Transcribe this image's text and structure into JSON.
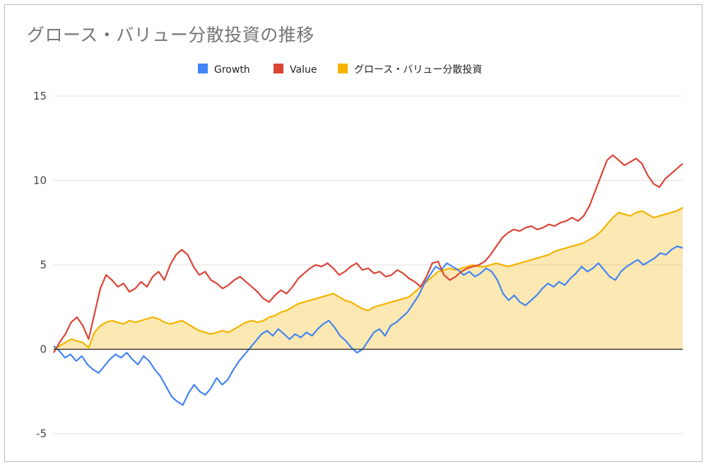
{
  "chart_data": {
    "type": "line",
    "title": "グロース・バリュー分散投資の推移",
    "xlabel": "",
    "ylabel": "",
    "ylim": [
      -5,
      15
    ],
    "yticks": [
      -5,
      0,
      5,
      10,
      15
    ],
    "grid": true,
    "legend_position": "top",
    "series": [
      {
        "name": "Growth",
        "color": "#4285f4",
        "style": "line",
        "values": [
          0.2,
          -0.1,
          -0.5,
          -0.3,
          -0.7,
          -0.4,
          -0.9,
          -1.2,
          -1.4,
          -1.0,
          -0.6,
          -0.3,
          -0.5,
          -0.2,
          -0.6,
          -0.9,
          -0.4,
          -0.7,
          -1.2,
          -1.6,
          -2.2,
          -2.8,
          -3.1,
          -3.3,
          -2.6,
          -2.1,
          -2.5,
          -2.7,
          -2.3,
          -1.7,
          -2.1,
          -1.8,
          -1.2,
          -0.7,
          -0.3,
          0.1,
          0.5,
          0.9,
          1.1,
          0.8,
          1.2,
          0.9,
          0.6,
          0.9,
          0.7,
          1.0,
          0.8,
          1.2,
          1.5,
          1.7,
          1.3,
          0.8,
          0.5,
          0.1,
          -0.2,
          0.0,
          0.5,
          1.0,
          1.2,
          0.8,
          1.4,
          1.6,
          1.9,
          2.2,
          2.7,
          3.2,
          3.9,
          4.4,
          4.9,
          4.7,
          5.1,
          4.9,
          4.7,
          4.4,
          4.6,
          4.3,
          4.5,
          4.8,
          4.6,
          4.1,
          3.3,
          2.9,
          3.2,
          2.8,
          2.6,
          2.9,
          3.2,
          3.6,
          3.9,
          3.7,
          4.0,
          3.8,
          4.2,
          4.5,
          4.9,
          4.6,
          4.8,
          5.1,
          4.7,
          4.3,
          4.1,
          4.6,
          4.9,
          5.1,
          5.3,
          5.0,
          5.2,
          5.4,
          5.7,
          5.6,
          5.9,
          6.1,
          6.0
        ]
      },
      {
        "name": "Value",
        "color": "#db4437",
        "style": "line",
        "values": [
          -0.2,
          0.4,
          0.9,
          1.6,
          1.9,
          1.4,
          0.6,
          2.1,
          3.6,
          4.4,
          4.1,
          3.7,
          3.9,
          3.4,
          3.6,
          4.0,
          3.7,
          4.3,
          4.6,
          4.1,
          5.0,
          5.6,
          5.9,
          5.6,
          4.9,
          4.4,
          4.6,
          4.1,
          3.9,
          3.6,
          3.8,
          4.1,
          4.3,
          4.0,
          3.7,
          3.4,
          3.0,
          2.8,
          3.2,
          3.5,
          3.3,
          3.7,
          4.2,
          4.5,
          4.8,
          5.0,
          4.9,
          5.1,
          4.8,
          4.4,
          4.6,
          4.9,
          5.1,
          4.7,
          4.8,
          4.5,
          4.6,
          4.3,
          4.4,
          4.7,
          4.5,
          4.2,
          4.0,
          3.7,
          4.3,
          5.1,
          5.2,
          4.4,
          4.1,
          4.3,
          4.6,
          4.8,
          4.9,
          5.0,
          5.2,
          5.6,
          6.1,
          6.6,
          6.9,
          7.1,
          7.0,
          7.2,
          7.3,
          7.1,
          7.2,
          7.4,
          7.3,
          7.5,
          7.6,
          7.8,
          7.6,
          7.9,
          8.5,
          9.4,
          10.3,
          11.2,
          11.5,
          11.2,
          10.9,
          11.1,
          11.3,
          11.0,
          10.3,
          9.8,
          9.6,
          10.1,
          10.4,
          10.7,
          11.0
        ]
      },
      {
        "name": "グロース・バリュー分散投資",
        "color": "#f4b400",
        "style": "area",
        "values": [
          0.0,
          0.2,
          0.4,
          0.6,
          0.5,
          0.4,
          0.1,
          1.0,
          1.4,
          1.6,
          1.7,
          1.6,
          1.5,
          1.7,
          1.6,
          1.7,
          1.8,
          1.9,
          1.8,
          1.6,
          1.5,
          1.6,
          1.7,
          1.5,
          1.3,
          1.1,
          1.0,
          0.9,
          1.0,
          1.1,
          1.0,
          1.2,
          1.4,
          1.6,
          1.7,
          1.6,
          1.7,
          1.9,
          2.0,
          2.2,
          2.3,
          2.5,
          2.7,
          2.8,
          2.9,
          3.0,
          3.1,
          3.2,
          3.3,
          3.1,
          2.9,
          2.8,
          2.6,
          2.4,
          2.3,
          2.5,
          2.6,
          2.7,
          2.8,
          2.9,
          3.0,
          3.1,
          3.4,
          3.7,
          4.0,
          4.3,
          4.6,
          4.7,
          4.8,
          4.7,
          4.8,
          4.9,
          5.0,
          4.9,
          4.9,
          5.0,
          5.1,
          5.0,
          4.9,
          5.0,
          5.1,
          5.2,
          5.3,
          5.4,
          5.5,
          5.6,
          5.8,
          5.9,
          6.0,
          6.1,
          6.2,
          6.3,
          6.5,
          6.7,
          7.0,
          7.4,
          7.8,
          8.1,
          8.0,
          7.9,
          8.1,
          8.2,
          8.0,
          7.8,
          7.9,
          8.0,
          8.1,
          8.2,
          8.4
        ]
      }
    ]
  }
}
